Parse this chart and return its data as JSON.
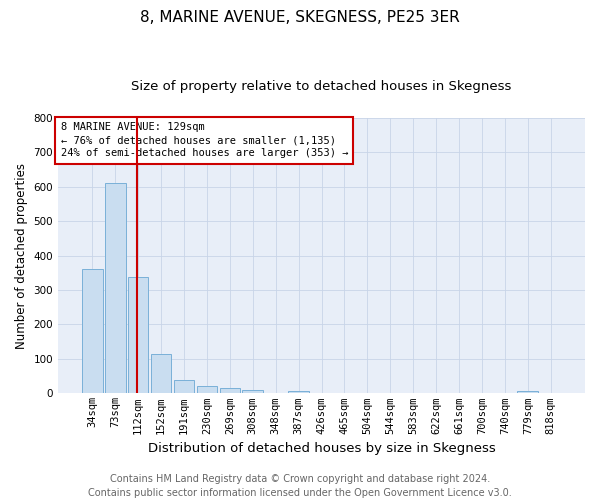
{
  "title": "8, MARINE AVENUE, SKEGNESS, PE25 3ER",
  "subtitle": "Size of property relative to detached houses in Skegness",
  "xlabel": "Distribution of detached houses by size in Skegness",
  "ylabel": "Number of detached properties",
  "bar_labels": [
    "34sqm",
    "73sqm",
    "112sqm",
    "152sqm",
    "191sqm",
    "230sqm",
    "269sqm",
    "308sqm",
    "348sqm",
    "387sqm",
    "426sqm",
    "465sqm",
    "504sqm",
    "544sqm",
    "583sqm",
    "622sqm",
    "661sqm",
    "700sqm",
    "740sqm",
    "779sqm",
    "818sqm"
  ],
  "bar_values": [
    360,
    610,
    338,
    115,
    40,
    20,
    16,
    9,
    0,
    8,
    0,
    0,
    0,
    0,
    0,
    0,
    0,
    0,
    0,
    8,
    0
  ],
  "bar_color": "#c9ddf0",
  "bar_edgecolor": "#7ab0d8",
  "bar_linewidth": 0.7,
  "grid_color": "#c8d4e8",
  "background_color": "#e8eef8",
  "ylim": [
    0,
    800
  ],
  "yticks": [
    0,
    100,
    200,
    300,
    400,
    500,
    600,
    700,
    800
  ],
  "red_line_color": "#cc0000",
  "annotation_text": "8 MARINE AVENUE: 129sqm\n← 76% of detached houses are smaller (1,135)\n24% of semi-detached houses are larger (353) →",
  "annotation_box_color": "#ffffff",
  "annotation_box_edgecolor": "#cc0000",
  "footer_line1": "Contains HM Land Registry data © Crown copyright and database right 2024.",
  "footer_line2": "Contains public sector information licensed under the Open Government Licence v3.0.",
  "title_fontsize": 11,
  "subtitle_fontsize": 9.5,
  "xlabel_fontsize": 9.5,
  "ylabel_fontsize": 8.5,
  "tick_fontsize": 7.5,
  "annotation_fontsize": 7.5,
  "footer_fontsize": 7
}
